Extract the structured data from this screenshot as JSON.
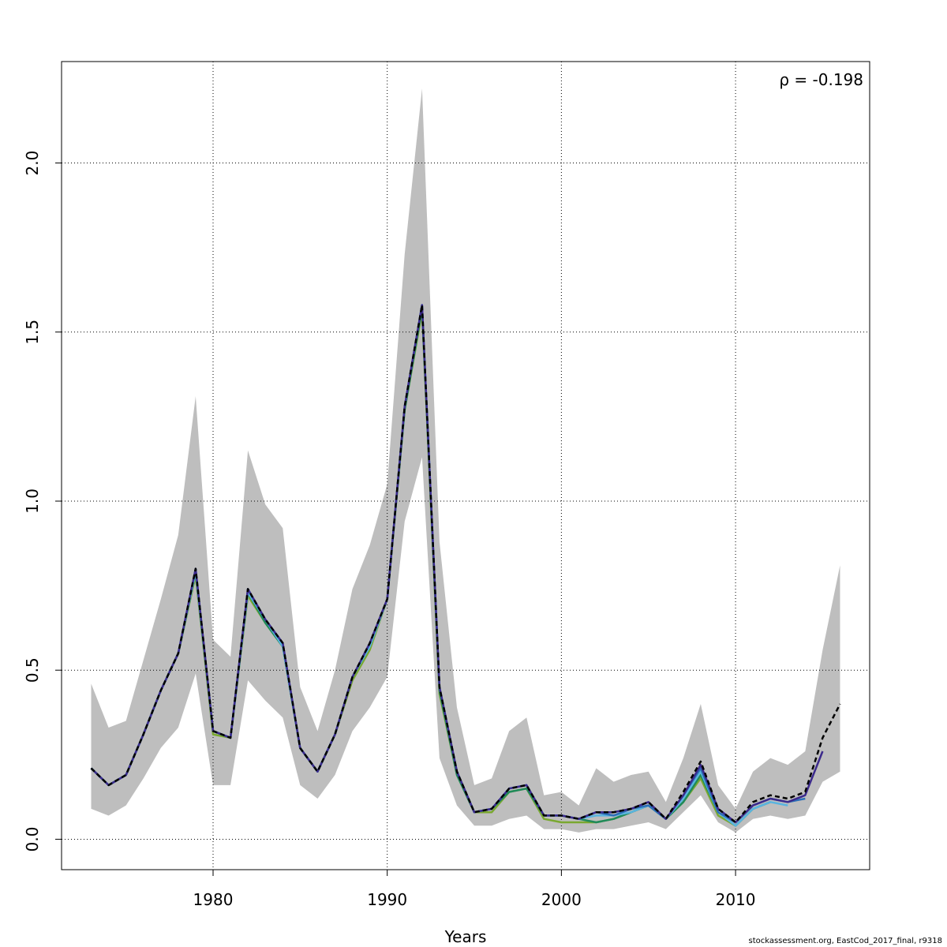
{
  "chart_data": {
    "type": "line",
    "xlabel": "Years",
    "ylabel": "",
    "annotation": "ρ = -0.198",
    "credit": "stockassessment.org, EastCod_2017_final, r9318",
    "xlim": [
      1971.3,
      2017.7
    ],
    "ylim": [
      -0.09,
      2.3
    ],
    "xticks": [
      "1980",
      "1990",
      "2000",
      "2010"
    ],
    "yticks": [
      "0.0",
      "0.5",
      "1.0",
      "1.5",
      "2.0"
    ],
    "grid": true,
    "band": {
      "x": [
        1973,
        1974,
        1975,
        1976,
        1977,
        1978,
        1979,
        1980,
        1981,
        1982,
        1983,
        1984,
        1985,
        1986,
        1987,
        1988,
        1989,
        1990,
        1991,
        1992,
        1993,
        1994,
        1995,
        1996,
        1997,
        1998,
        1999,
        2000,
        2001,
        2002,
        2003,
        2004,
        2005,
        2006,
        2007,
        2008,
        2009,
        2010,
        2011,
        2012,
        2013,
        2014,
        2015,
        2016
      ],
      "upper": [
        0.46,
        0.33,
        0.35,
        0.53,
        0.71,
        0.9,
        1.31,
        0.59,
        0.54,
        1.15,
        0.99,
        0.92,
        0.45,
        0.32,
        0.5,
        0.74,
        0.87,
        1.05,
        1.73,
        2.22,
        0.88,
        0.39,
        0.16,
        0.18,
        0.32,
        0.36,
        0.13,
        0.14,
        0.1,
        0.21,
        0.17,
        0.19,
        0.2,
        0.11,
        0.24,
        0.4,
        0.16,
        0.09,
        0.2,
        0.24,
        0.22,
        0.26,
        0.56,
        0.81
      ],
      "lower": [
        0.09,
        0.07,
        0.1,
        0.18,
        0.27,
        0.33,
        0.49,
        0.16,
        0.16,
        0.47,
        0.41,
        0.36,
        0.16,
        0.12,
        0.19,
        0.32,
        0.39,
        0.48,
        0.94,
        1.13,
        0.24,
        0.1,
        0.04,
        0.04,
        0.06,
        0.07,
        0.03,
        0.03,
        0.02,
        0.03,
        0.03,
        0.04,
        0.05,
        0.03,
        0.08,
        0.13,
        0.05,
        0.02,
        0.06,
        0.07,
        0.06,
        0.07,
        0.17,
        0.2
      ]
    },
    "series": [
      {
        "color": "#000000",
        "dashed": true,
        "x": [
          1973,
          1974,
          1975,
          1976,
          1977,
          1978,
          1979,
          1980,
          1981,
          1982,
          1983,
          1984,
          1985,
          1986,
          1987,
          1988,
          1989,
          1990,
          1991,
          1992,
          1993,
          1994,
          1995,
          1996,
          1997,
          1998,
          1999,
          2000,
          2001,
          2002,
          2003,
          2004,
          2005,
          2006,
          2007,
          2008,
          2009,
          2010,
          2011,
          2012,
          2013,
          2014,
          2015,
          2016
        ],
        "y": [
          0.21,
          0.16,
          0.19,
          0.31,
          0.44,
          0.55,
          0.8,
          0.32,
          0.3,
          0.74,
          0.65,
          0.58,
          0.27,
          0.2,
          0.31,
          0.48,
          0.58,
          0.71,
          1.28,
          1.58,
          0.45,
          0.2,
          0.08,
          0.09,
          0.15,
          0.16,
          0.07,
          0.07,
          0.06,
          0.08,
          0.08,
          0.09,
          0.11,
          0.06,
          0.14,
          0.23,
          0.09,
          0.05,
          0.11,
          0.13,
          0.12,
          0.14,
          0.3,
          0.4
        ]
      },
      {
        "color": "#3c2a8c",
        "x": [
          1973,
          1974,
          1975,
          1976,
          1977,
          1978,
          1979,
          1980,
          1981,
          1982,
          1983,
          1984,
          1985,
          1986,
          1987,
          1988,
          1989,
          1990,
          1991,
          1992,
          1993,
          1994,
          1995,
          1996,
          1997,
          1998,
          1999,
          2000,
          2001,
          2002,
          2003,
          2004,
          2005,
          2006,
          2007,
          2008,
          2009,
          2010,
          2011,
          2012,
          2013,
          2014,
          2015
        ],
        "y": [
          0.21,
          0.16,
          0.19,
          0.31,
          0.44,
          0.55,
          0.8,
          0.32,
          0.3,
          0.74,
          0.65,
          0.58,
          0.27,
          0.2,
          0.31,
          0.48,
          0.58,
          0.71,
          1.28,
          1.58,
          0.45,
          0.2,
          0.08,
          0.09,
          0.15,
          0.16,
          0.07,
          0.07,
          0.06,
          0.08,
          0.08,
          0.09,
          0.11,
          0.06,
          0.13,
          0.22,
          0.09,
          0.05,
          0.1,
          0.12,
          0.11,
          0.13,
          0.26
        ]
      },
      {
        "color": "#2c6fb8",
        "x": [
          1973,
          1974,
          1975,
          1976,
          1977,
          1978,
          1979,
          1980,
          1981,
          1982,
          1983,
          1984,
          1985,
          1986,
          1987,
          1988,
          1989,
          1990,
          1991,
          1992,
          1993,
          1994,
          1995,
          1996,
          1997,
          1998,
          1999,
          2000,
          2001,
          2002,
          2003,
          2004,
          2005,
          2006,
          2007,
          2008,
          2009,
          2010,
          2011,
          2012,
          2013,
          2014
        ],
        "y": [
          0.21,
          0.16,
          0.19,
          0.31,
          0.44,
          0.55,
          0.8,
          0.32,
          0.3,
          0.74,
          0.65,
          0.58,
          0.27,
          0.2,
          0.31,
          0.48,
          0.58,
          0.71,
          1.28,
          1.58,
          0.45,
          0.2,
          0.08,
          0.09,
          0.15,
          0.16,
          0.07,
          0.07,
          0.06,
          0.08,
          0.07,
          0.09,
          0.1,
          0.06,
          0.13,
          0.21,
          0.08,
          0.05,
          0.1,
          0.12,
          0.11,
          0.12
        ]
      },
      {
        "color": "#5ab4e0",
        "x": [
          1973,
          1974,
          1975,
          1976,
          1977,
          1978,
          1979,
          1980,
          1981,
          1982,
          1983,
          1984,
          1985,
          1986,
          1987,
          1988,
          1989,
          1990,
          1991,
          1992,
          1993,
          1994,
          1995,
          1996,
          1997,
          1998,
          1999,
          2000,
          2001,
          2002,
          2003,
          2004,
          2005,
          2006,
          2007,
          2008,
          2009,
          2010,
          2011,
          2012,
          2013
        ],
        "y": [
          0.21,
          0.16,
          0.19,
          0.31,
          0.44,
          0.55,
          0.79,
          0.32,
          0.3,
          0.73,
          0.65,
          0.57,
          0.27,
          0.2,
          0.31,
          0.48,
          0.57,
          0.71,
          1.28,
          1.58,
          0.45,
          0.2,
          0.08,
          0.09,
          0.15,
          0.16,
          0.07,
          0.07,
          0.06,
          0.07,
          0.07,
          0.08,
          0.1,
          0.06,
          0.12,
          0.2,
          0.08,
          0.04,
          0.09,
          0.11,
          0.1
        ]
      },
      {
        "color": "#1f8a5a",
        "x": [
          1973,
          1974,
          1975,
          1976,
          1977,
          1978,
          1979,
          1980,
          1981,
          1982,
          1983,
          1984,
          1985,
          1986,
          1987,
          1988,
          1989,
          1990,
          1991,
          1992,
          1993,
          1994,
          1995,
          1996,
          1997,
          1998,
          1999,
          2000,
          2001,
          2002,
          2003,
          2004,
          2005,
          2006,
          2007,
          2008,
          2009,
          2010,
          2011,
          2012
        ],
        "y": [
          0.21,
          0.16,
          0.19,
          0.31,
          0.44,
          0.55,
          0.79,
          0.32,
          0.3,
          0.73,
          0.64,
          0.57,
          0.27,
          0.2,
          0.31,
          0.48,
          0.57,
          0.71,
          1.27,
          1.57,
          0.44,
          0.19,
          0.08,
          0.09,
          0.14,
          0.15,
          0.07,
          0.07,
          0.06,
          0.05,
          0.06,
          0.08,
          0.1,
          0.06,
          0.11,
          0.19,
          0.08,
          0.04,
          0.09,
          0.11
        ]
      },
      {
        "color": "#7aa830",
        "x": [
          1973,
          1974,
          1975,
          1976,
          1977,
          1978,
          1979,
          1980,
          1981,
          1982,
          1983,
          1984,
          1985,
          1986,
          1987,
          1988,
          1989,
          1990,
          1991,
          1992,
          1993,
          1994,
          1995,
          1996,
          1997,
          1998,
          1999,
          2000,
          2001,
          2002,
          2003,
          2004,
          2005,
          2006,
          2007,
          2008,
          2009,
          2010,
          2011
        ],
        "y": [
          0.21,
          0.16,
          0.19,
          0.31,
          0.44,
          0.55,
          0.78,
          0.31,
          0.3,
          0.72,
          0.64,
          0.57,
          0.27,
          0.2,
          0.31,
          0.47,
          0.56,
          0.71,
          1.27,
          1.56,
          0.43,
          0.19,
          0.08,
          0.08,
          0.14,
          0.15,
          0.06,
          0.05,
          0.05,
          0.05,
          0.06,
          0.08,
          0.1,
          0.06,
          0.11,
          0.18,
          0.07,
          0.04,
          0.09
        ]
      }
    ]
  }
}
